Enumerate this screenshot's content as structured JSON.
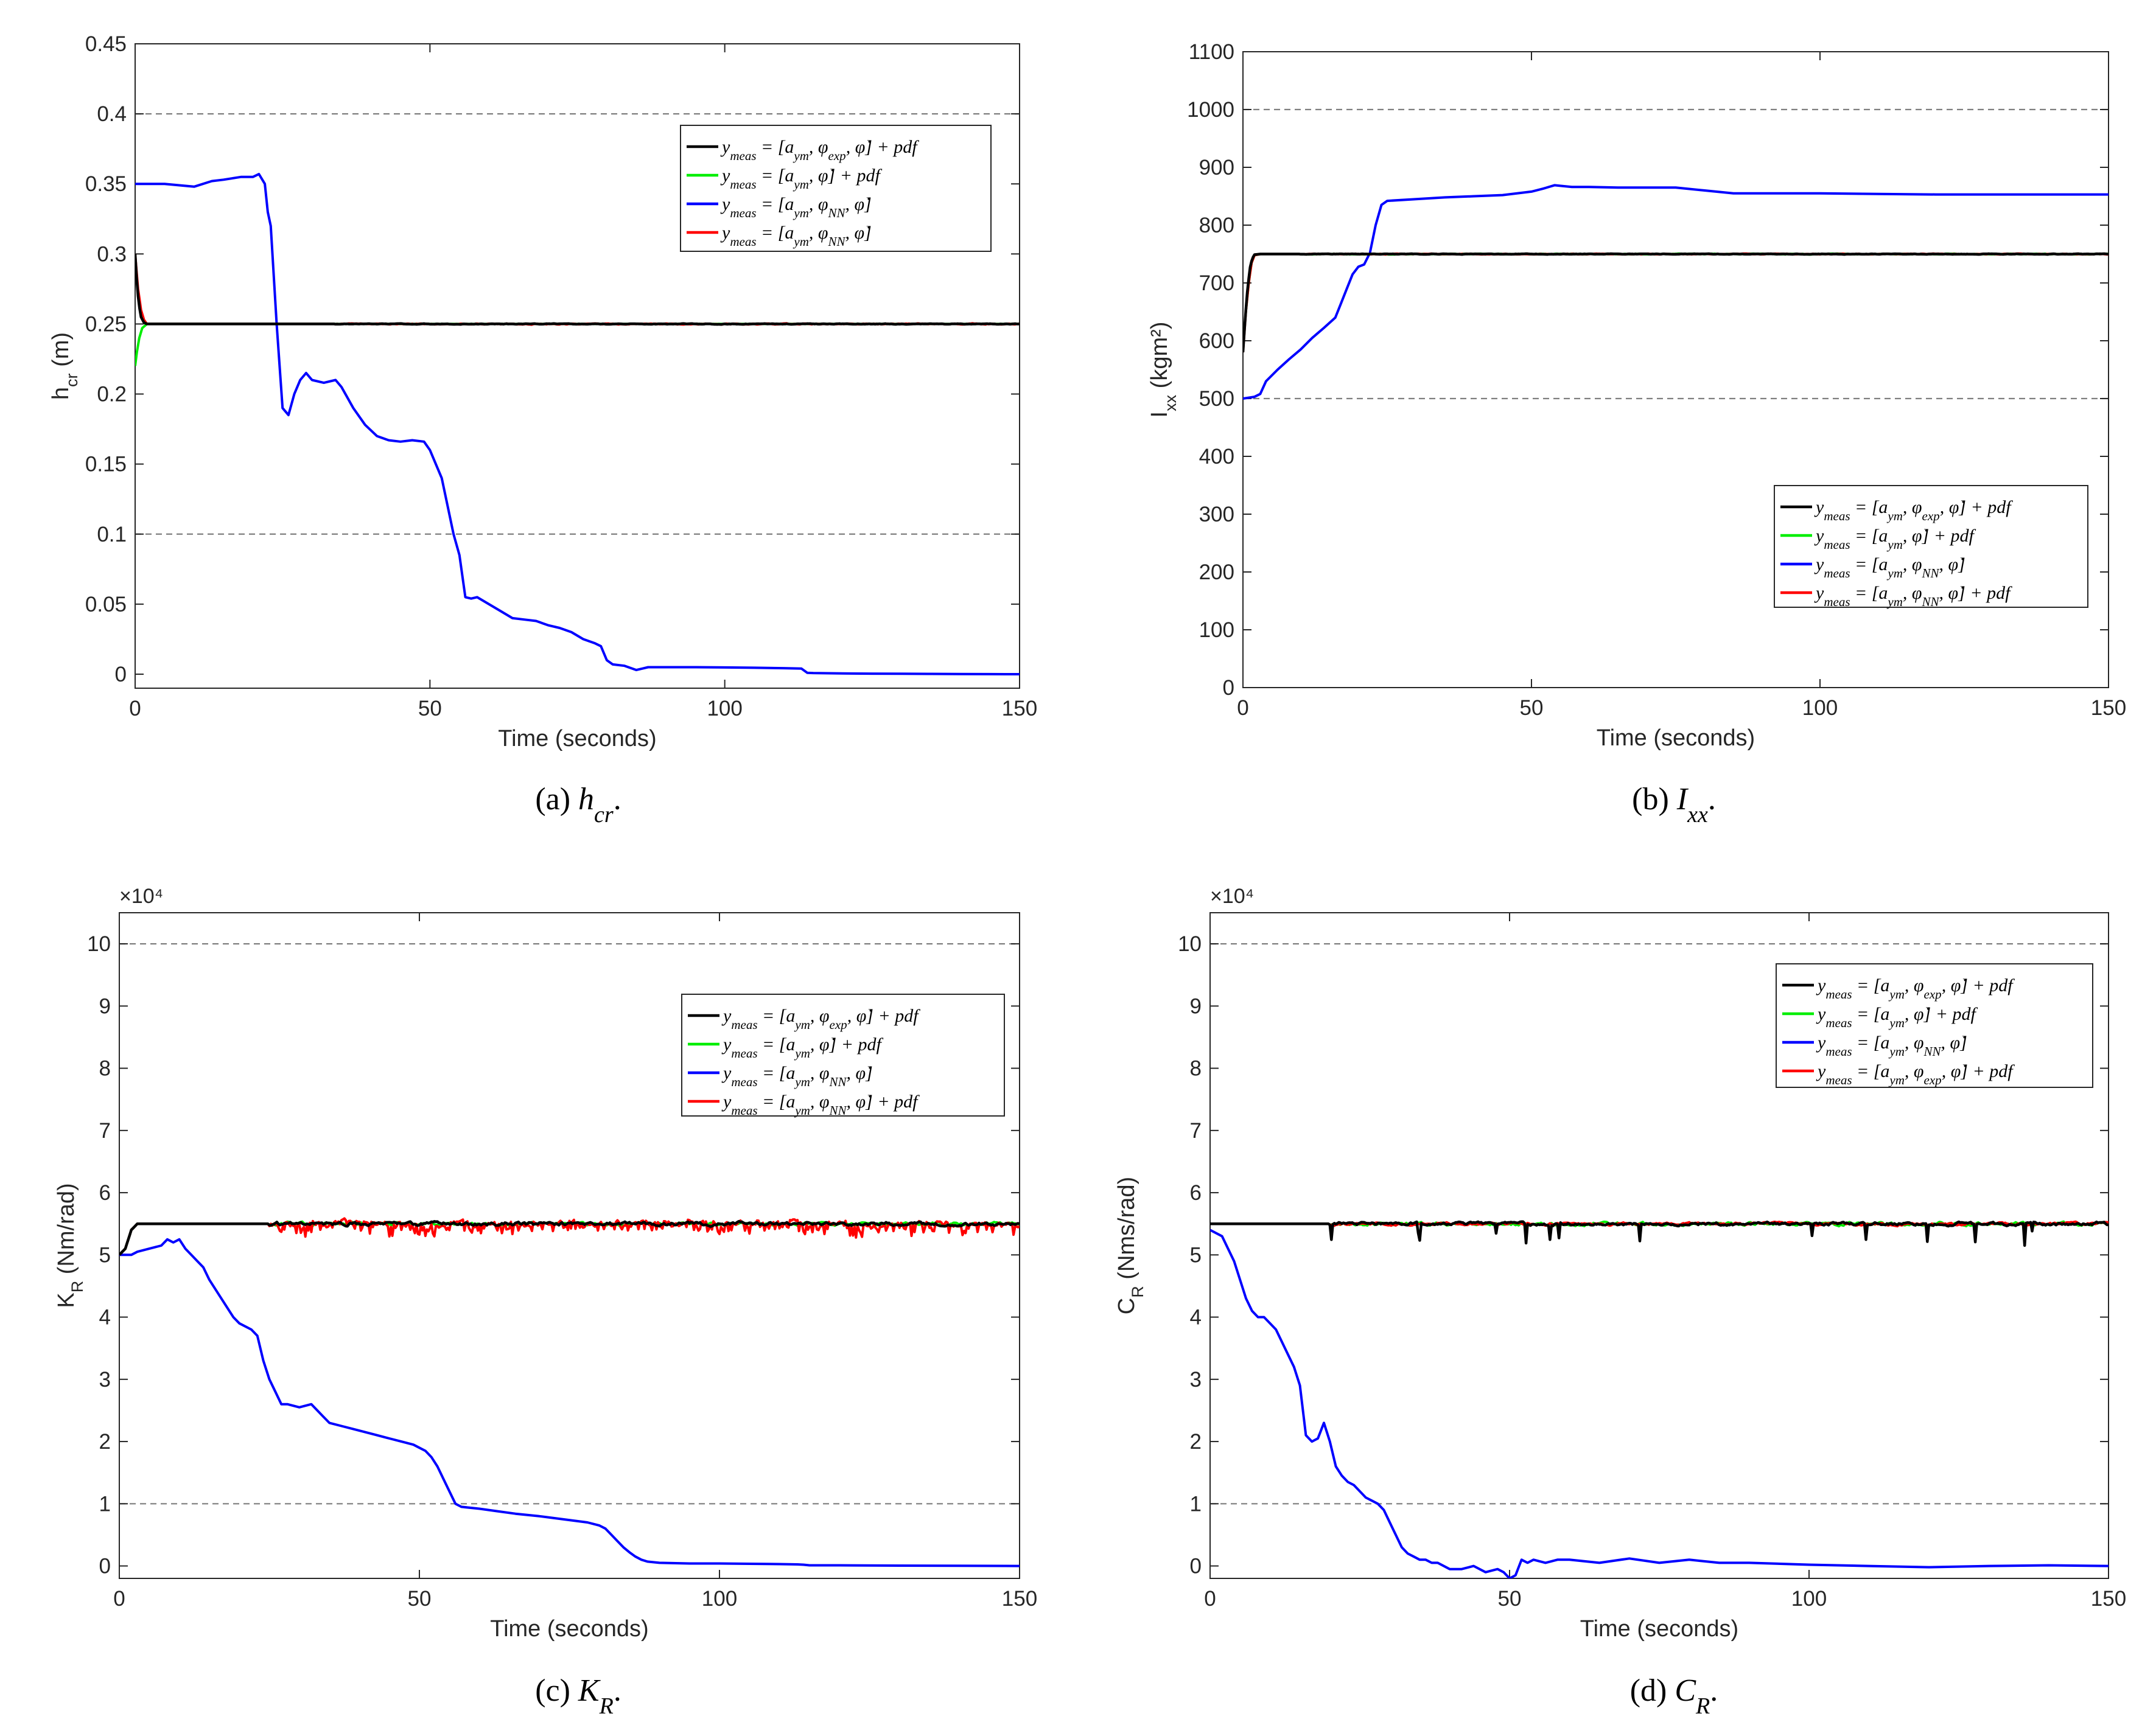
{
  "colors": {
    "black": "#000000",
    "green": "#00ee00",
    "blue": "#0000ff",
    "red": "#ff0000",
    "ref": "#7f7f7f",
    "axis": "#262626"
  },
  "chart_data": [
    {
      "id": "a",
      "type": "line",
      "caption": "(a)  h_cr.",
      "caption_label": "(a)",
      "caption_math": "h",
      "caption_sub": "cr",
      "ylabel_main": "h",
      "ylabel_sub": "cr",
      "ylabel_rest": " (m)",
      "xlabel": "Time (seconds)",
      "exponent": "",
      "xlim": [
        0,
        150
      ],
      "ylim": [
        -0.01,
        0.45
      ],
      "xticks": [
        0,
        50,
        100,
        150
      ],
      "xtick_labels": [
        "0",
        "50",
        "100",
        "150"
      ],
      "yticks": [
        0,
        0.05,
        0.1,
        0.15,
        0.2,
        0.25,
        0.3,
        0.35,
        0.4,
        0.45
      ],
      "ytick_labels": [
        "0",
        "0.05",
        "0.1",
        "0.15",
        "0.2",
        "0.25",
        "0.3",
        "0.35",
        "0.4",
        "0.45"
      ],
      "reference_lines": [
        0.1,
        0.4
      ],
      "legend_position": "top-right",
      "legend": [
        {
          "color": "black",
          "text": "y_meas = [a_ym, φ_exp, φ̇] + pdf"
        },
        {
          "color": "green",
          "text": "y_meas = [a_ym, φ̇] + pdf"
        },
        {
          "color": "blue",
          "text": "y_meas = [a_ym, φ_NN, φ̇]"
        },
        {
          "color": "red",
          "text": "y_meas = [a_ym, φ_NN, φ̇]"
        }
      ],
      "series": [
        {
          "name": "blue",
          "color": "blue",
          "x": [
            0,
            5,
            10,
            13,
            15,
            18,
            20,
            21,
            22,
            22.5,
            23,
            24,
            25,
            26,
            27,
            28,
            29,
            30,
            32,
            34,
            35,
            37,
            39,
            41,
            43,
            45,
            47,
            49,
            50,
            51,
            52,
            53,
            54,
            55,
            56,
            57,
            58,
            60,
            62,
            64,
            66,
            68,
            70,
            72,
            74,
            76,
            78,
            79,
            80,
            81,
            83,
            85,
            86,
            87,
            88,
            90,
            95,
            100,
            105,
            110,
            113,
            114,
            115,
            120,
            125,
            130,
            135,
            140,
            145,
            150
          ],
          "y": [
            0.35,
            0.35,
            0.348,
            0.352,
            0.353,
            0.355,
            0.355,
            0.357,
            0.35,
            0.33,
            0.32,
            0.25,
            0.19,
            0.185,
            0.2,
            0.21,
            0.215,
            0.21,
            0.208,
            0.21,
            0.205,
            0.19,
            0.178,
            0.17,
            0.167,
            0.166,
            0.167,
            0.166,
            0.16,
            0.15,
            0.14,
            0.12,
            0.1,
            0.085,
            0.055,
            0.054,
            0.055,
            0.05,
            0.045,
            0.04,
            0.039,
            0.038,
            0.035,
            0.033,
            0.03,
            0.025,
            0.022,
            0.02,
            0.01,
            0.007,
            0.006,
            0.003,
            0.004,
            0.005,
            0.005,
            0.005,
            0.005,
            0.0048,
            0.0046,
            0.0043,
            0.004,
            0.001,
            0.0008,
            0.0005,
            0.0004,
            0.0003,
            0.0002,
            0.0001,
            5e-05,
            0
          ]
        },
        {
          "name": "green",
          "color": "green",
          "x": [
            0,
            0.3,
            0.7,
            1.2,
            2,
            3,
            150
          ],
          "y": [
            0.22,
            0.23,
            0.24,
            0.247,
            0.25,
            0.25,
            0.25
          ]
        },
        {
          "name": "red",
          "color": "red",
          "x": [
            0,
            0.5,
            1,
            1.5,
            2,
            3,
            150
          ],
          "y": [
            0.3,
            0.275,
            0.26,
            0.253,
            0.25,
            0.25,
            0.25
          ],
          "noise": 0.0008,
          "noise_from": 34
        },
        {
          "name": "black",
          "color": "black",
          "x": [
            0,
            0.3,
            0.6,
            1,
            1.5,
            2,
            3,
            150
          ],
          "y": [
            0.3,
            0.28,
            0.265,
            0.255,
            0.251,
            0.25,
            0.25,
            0.25
          ],
          "noise": 0.0005,
          "noise_from": 34
        }
      ]
    },
    {
      "id": "b",
      "type": "line",
      "caption": "(b)  I_xx.",
      "caption_label": "(b)",
      "caption_math": "I",
      "caption_sub": "xx",
      "ylabel_main": "I",
      "ylabel_sub": "xx",
      "ylabel_rest": " (kgm²)",
      "xlabel": "Time (seconds)",
      "exponent": "",
      "xlim": [
        0,
        150
      ],
      "ylim": [
        0,
        1100
      ],
      "xticks": [
        0,
        50,
        100,
        150
      ],
      "xtick_labels": [
        "0",
        "50",
        "100",
        "150"
      ],
      "yticks": [
        0,
        100,
        200,
        300,
        400,
        500,
        600,
        700,
        800,
        900,
        1000,
        1100
      ],
      "ytick_labels": [
        "0",
        "100",
        "200",
        "300",
        "400",
        "500",
        "600",
        "700",
        "800",
        "900",
        "1000",
        "1100"
      ],
      "reference_lines": [
        500,
        1000
      ],
      "legend_position": "right",
      "legend": [
        {
          "color": "black",
          "text": "y_meas = [a_ym, φ_exp, φ̇] + pdf"
        },
        {
          "color": "green",
          "text": "y_meas = [a_ym, φ̇] + pdf"
        },
        {
          "color": "blue",
          "text": "y_meas = [a_ym, φ_NN, φ̇]"
        },
        {
          "color": "red",
          "text": "y_meas = [a_ym, φ_NN, φ̇] + pdf"
        }
      ],
      "series": [
        {
          "name": "blue",
          "color": "blue",
          "x": [
            0,
            2,
            3,
            4,
            6,
            8,
            10,
            12,
            14,
            16,
            17,
            18,
            19,
            20,
            21,
            22,
            23,
            24,
            25,
            30,
            35,
            40,
            45,
            50,
            52,
            54,
            55,
            57,
            60,
            65,
            70,
            75,
            80,
            85,
            90,
            100,
            110,
            120,
            130,
            140,
            150
          ],
          "y": [
            500,
            503,
            508,
            530,
            550,
            568,
            585,
            605,
            622,
            640,
            665,
            690,
            715,
            728,
            732,
            752,
            800,
            835,
            842,
            845,
            848,
            850,
            852,
            858,
            863,
            869,
            868,
            866,
            866,
            865,
            865,
            865,
            860,
            855,
            855,
            855,
            854,
            853,
            853,
            853,
            853
          ]
        },
        {
          "name": "green",
          "color": "green",
          "x": [
            0,
            0.5,
            1,
            1.5,
            2,
            3,
            150
          ],
          "y": [
            590,
            650,
            700,
            735,
            748,
            750,
            750
          ],
          "noise": 1.2,
          "noise_from": 10
        },
        {
          "name": "red",
          "color": "red",
          "x": [
            0,
            0.5,
            1,
            1.5,
            2,
            3,
            150
          ],
          "y": [
            580,
            650,
            700,
            735,
            748,
            750,
            750
          ],
          "noise": 1.2,
          "noise_from": 10
        },
        {
          "name": "black",
          "color": "black",
          "x": [
            0,
            0.4,
            0.8,
            1.2,
            1.6,
            2,
            3,
            150
          ],
          "y": [
            580,
            640,
            690,
            725,
            742,
            749,
            750,
            750
          ],
          "noise": 1.0,
          "noise_from": 10
        }
      ]
    },
    {
      "id": "c",
      "type": "line",
      "caption": "(c)  K_R.",
      "caption_label": "(c)",
      "caption_math": "K",
      "caption_sub": "R",
      "ylabel_main": "K",
      "ylabel_sub": "R",
      "ylabel_rest": " (Nm/rad)",
      "xlabel": "Time (seconds)",
      "exponent": "×10⁴",
      "xlim": [
        0,
        150
      ],
      "ylim": [
        -0.2,
        10.5
      ],
      "xticks": [
        0,
        50,
        100,
        150
      ],
      "xtick_labels": [
        "0",
        "50",
        "100",
        "150"
      ],
      "yticks": [
        0,
        1,
        2,
        3,
        4,
        5,
        6,
        7,
        8,
        9,
        10
      ],
      "ytick_labels": [
        "0",
        "1",
        "2",
        "3",
        "4",
        "5",
        "6",
        "7",
        "8",
        "9",
        "10"
      ],
      "reference_lines": [
        1,
        10
      ],
      "legend_position": "top-right",
      "legend": [
        {
          "color": "black",
          "text": "y_meas = [a_ym, φ_exp, φ̇] + pdf"
        },
        {
          "color": "green",
          "text": "y_meas = [a_ym, φ̇] + pdf"
        },
        {
          "color": "blue",
          "text": "y_meas = [a_ym, φ_NN, φ̇]"
        },
        {
          "color": "red",
          "text": "y_meas = [a_ym, φ_NN, φ̇] + pdf"
        }
      ],
      "series": [
        {
          "name": "blue",
          "color": "blue",
          "x": [
            0,
            1,
            2,
            3,
            5,
            7,
            8,
            9,
            10,
            11,
            12,
            13,
            14,
            15,
            17,
            19,
            20,
            22,
            23,
            24,
            25,
            26,
            27,
            28,
            30,
            32,
            34,
            35,
            37,
            39,
            41,
            43,
            45,
            47,
            49,
            50,
            51,
            52,
            53,
            54,
            55,
            56,
            57,
            60,
            63,
            66,
            70,
            74,
            78,
            80,
            81,
            82,
            83,
            84,
            85,
            86,
            87,
            88,
            90,
            95,
            100,
            105,
            110,
            113,
            114,
            115,
            120,
            130,
            140,
            150
          ],
          "y": [
            5.0,
            5.0,
            5.0,
            5.05,
            5.1,
            5.15,
            5.25,
            5.2,
            5.25,
            5.1,
            5.0,
            4.9,
            4.8,
            4.6,
            4.3,
            4.0,
            3.9,
            3.8,
            3.7,
            3.3,
            3.0,
            2.8,
            2.6,
            2.6,
            2.55,
            2.6,
            2.4,
            2.3,
            2.25,
            2.2,
            2.15,
            2.1,
            2.05,
            2.0,
            1.95,
            1.9,
            1.85,
            1.75,
            1.6,
            1.4,
            1.2,
            1.0,
            0.95,
            0.92,
            0.88,
            0.84,
            0.8,
            0.75,
            0.7,
            0.65,
            0.6,
            0.5,
            0.4,
            0.3,
            0.22,
            0.15,
            0.1,
            0.07,
            0.05,
            0.04,
            0.04,
            0.035,
            0.03,
            0.025,
            0.02,
            0.01,
            0.01,
            0.005,
            0.002,
            0
          ]
        },
        {
          "name": "green",
          "color": "green",
          "x": [
            0,
            1,
            2,
            3,
            150
          ],
          "y": [
            5.0,
            5.1,
            5.4,
            5.5,
            5.5
          ],
          "noise": 0.06,
          "noise_from": 25
        },
        {
          "name": "red",
          "color": "red",
          "x": [
            0,
            1,
            2,
            3,
            150
          ],
          "y": [
            5.0,
            5.1,
            5.4,
            5.5,
            5.5
          ],
          "noise": 0.12,
          "noise_from": 25,
          "bias": -0.08
        },
        {
          "name": "black",
          "color": "black",
          "x": [
            0,
            1,
            2,
            3,
            150
          ],
          "y": [
            5.0,
            5.1,
            5.4,
            5.5,
            5.5
          ],
          "noise": 0.07,
          "noise_from": 25
        }
      ]
    },
    {
      "id": "d",
      "type": "line",
      "caption": "(d)  C_R.",
      "caption_label": "(d)",
      "caption_math": "C",
      "caption_sub": "R",
      "ylabel_main": "C",
      "ylabel_sub": "R",
      "ylabel_rest": " (Nms/rad)",
      "xlabel": "Time (seconds)",
      "exponent": "×10⁴",
      "xlim": [
        0,
        150
      ],
      "ylim": [
        -0.2,
        10.5
      ],
      "xticks": [
        0,
        50,
        100,
        150
      ],
      "xtick_labels": [
        "0",
        "50",
        "100",
        "150"
      ],
      "yticks": [
        0,
        1,
        2,
        3,
        4,
        5,
        6,
        7,
        8,
        9,
        10
      ],
      "ytick_labels": [
        "0",
        "1",
        "2",
        "3",
        "4",
        "5",
        "6",
        "7",
        "8",
        "9",
        "10"
      ],
      "reference_lines": [
        1,
        10
      ],
      "legend_position": "top-right",
      "legend": [
        {
          "color": "black",
          "text": "y_meas = [a_ym, φ_exp, φ̇] + pdf"
        },
        {
          "color": "green",
          "text": "y_meas = [a_ym, φ̇] + pdf"
        },
        {
          "color": "blue",
          "text": "y_meas = [a_ym, φ_NN, φ̇]"
        },
        {
          "color": "red",
          "text": "y_meas = [a_ym, φ_exp, φ̇] + pdf"
        }
      ],
      "series": [
        {
          "name": "blue",
          "color": "blue",
          "x": [
            0,
            2,
            3,
            4,
            5,
            6,
            7,
            8,
            9,
            10,
            11,
            12,
            13,
            14,
            15,
            16,
            17,
            18,
            19,
            20,
            21,
            22,
            23,
            24,
            25,
            26,
            27,
            28,
            29,
            30,
            31,
            32,
            33,
            34,
            35,
            36,
            37,
            38,
            40,
            42,
            44,
            46,
            48,
            49,
            50,
            51,
            52,
            53,
            54,
            56,
            58,
            60,
            65,
            70,
            75,
            80,
            85,
            90,
            100,
            110,
            120,
            130,
            140,
            150
          ],
          "y": [
            5.4,
            5.3,
            5.1,
            4.9,
            4.6,
            4.3,
            4.1,
            4.0,
            4.0,
            3.9,
            3.8,
            3.6,
            3.4,
            3.2,
            2.9,
            2.1,
            2.0,
            2.05,
            2.3,
            2.0,
            1.6,
            1.45,
            1.35,
            1.3,
            1.2,
            1.1,
            1.05,
            1.0,
            0.9,
            0.7,
            0.5,
            0.3,
            0.2,
            0.15,
            0.1,
            0.1,
            0.05,
            0.05,
            -0.05,
            -0.05,
            0.0,
            -0.1,
            -0.05,
            -0.1,
            -0.2,
            -0.15,
            0.1,
            0.05,
            0.1,
            0.05,
            0.1,
            0.1,
            0.05,
            0.12,
            0.05,
            0.1,
            0.05,
            0.05,
            0.02,
            0.0,
            -0.02,
            0.0,
            0.01,
            0.0
          ]
        },
        {
          "name": "green",
          "color": "green",
          "x": [
            0,
            150
          ],
          "y": [
            5.5,
            5.5
          ],
          "noise": 0.06,
          "noise_from": 20
        },
        {
          "name": "red",
          "color": "red",
          "x": [
            0,
            150
          ],
          "y": [
            5.5,
            5.5
          ],
          "noise": 0.05,
          "noise_from": 20
        },
        {
          "name": "black",
          "color": "black",
          "x": [
            0,
            150
          ],
          "y": [
            5.5,
            5.5
          ],
          "noise": 0.06,
          "noise_from": 20,
          "spikes": true
        }
      ]
    }
  ]
}
